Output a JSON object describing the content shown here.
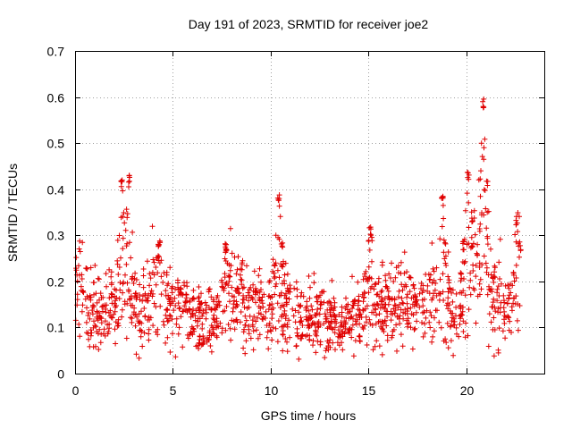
{
  "chart_data": {
    "type": "scatter",
    "title": "Day 191 of 2023, SRMTID for receiver joe2",
    "xlabel": "GPS time / hours",
    "ylabel": "SRMTID / TECUs",
    "xlim": [
      0,
      24
    ],
    "ylim": [
      0,
      0.7
    ],
    "xticks": [
      0,
      5,
      10,
      15,
      20
    ],
    "xtick_labels": [
      "0",
      "5",
      "10",
      "15",
      "20"
    ],
    "yticks": [
      0,
      0.1,
      0.2,
      0.3,
      0.4,
      0.5,
      0.6,
      0.7
    ],
    "ytick_labels": [
      "0",
      "0.1",
      "0.2",
      "0.3",
      "0.4",
      "0.5",
      "0.6",
      "0.7"
    ],
    "grid": true,
    "marker": "plus",
    "series_color": "#e00000",
    "profile": {
      "x": [
        0,
        0.3,
        0.6,
        1.0,
        1.5,
        2.0,
        2.3,
        2.5,
        2.7,
        3.0,
        3.5,
        4.0,
        4.5,
        5.0,
        5.5,
        6.0,
        6.5,
        7.0,
        7.5,
        8.0,
        8.5,
        9.0,
        9.5,
        10.0,
        10.4,
        10.8,
        11.5,
        12.0,
        12.5,
        13.0,
        13.5,
        14.0,
        14.5,
        15.0,
        15.5,
        16.0,
        16.5,
        17.0,
        17.5,
        18.0,
        18.5,
        18.8,
        19.2,
        19.6,
        20.0,
        20.3,
        20.6,
        20.9,
        21.2,
        21.6,
        22.0,
        22.4,
        22.8
      ],
      "y": [
        0.16,
        0.18,
        0.13,
        0.14,
        0.13,
        0.14,
        0.16,
        0.22,
        0.18,
        0.14,
        0.14,
        0.17,
        0.16,
        0.15,
        0.15,
        0.13,
        0.12,
        0.12,
        0.13,
        0.17,
        0.17,
        0.14,
        0.14,
        0.13,
        0.17,
        0.14,
        0.13,
        0.12,
        0.12,
        0.11,
        0.11,
        0.11,
        0.13,
        0.15,
        0.15,
        0.15,
        0.15,
        0.15,
        0.14,
        0.15,
        0.18,
        0.18,
        0.13,
        0.13,
        0.2,
        0.22,
        0.22,
        0.24,
        0.19,
        0.17,
        0.16,
        0.15,
        0.21
      ]
    },
    "spikes": [
      {
        "x": 2.4,
        "y": 0.42
      },
      {
        "x": 2.75,
        "y": 0.43
      },
      {
        "x": 4.3,
        "y": 0.29
      },
      {
        "x": 7.7,
        "y": 0.29
      },
      {
        "x": 10.4,
        "y": 0.4
      },
      {
        "x": 15.1,
        "y": 0.33
      },
      {
        "x": 18.8,
        "y": 0.41
      },
      {
        "x": 20.1,
        "y": 0.45
      },
      {
        "x": 20.9,
        "y": 0.6
      },
      {
        "x": 22.6,
        "y": 0.35
      }
    ],
    "n_points": 1500,
    "random_seed": 191
  }
}
